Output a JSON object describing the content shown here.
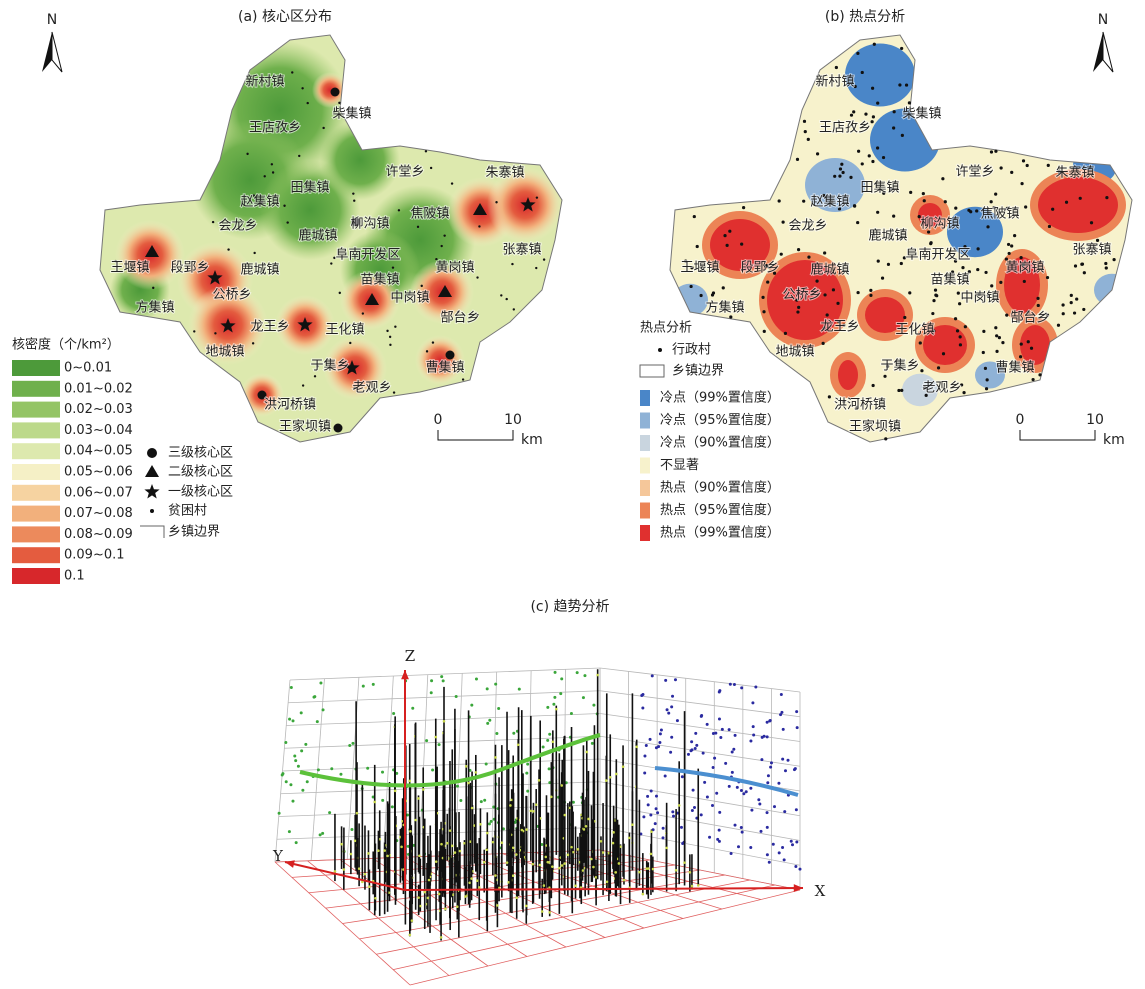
{
  "panel_a": {
    "title": "(a) 核心区分布",
    "north": "N",
    "towns": [
      "新村镇",
      "柴集镇",
      "王店孜乡",
      "田集镇",
      "许堂乡",
      "朱寨镇",
      "赵集镇",
      "柳沟镇",
      "焦陂镇",
      "会龙乡",
      "鹿城镇",
      "阜南开发区",
      "张寨镇",
      "王堰镇",
      "段郢乡",
      "鹿城镇",
      "苗集镇",
      "黄岗镇",
      "中岗镇",
      "公桥乡",
      "方集镇",
      "龙王乡",
      "王化镇",
      "郜台乡",
      "地城镇",
      "于集乡",
      "曹集镇",
      "老观乡",
      "洪河桥镇",
      "王家坝镇"
    ],
    "legend": {
      "title": "核密度（个/km²）",
      "classes": [
        {
          "label": "0~0.01",
          "color": "#4d9a3a"
        },
        {
          "label": "0.01~0.02",
          "color": "#6fb04c"
        },
        {
          "label": "0.02~0.03",
          "color": "#94c465"
        },
        {
          "label": "0.03~0.04",
          "color": "#bcd98a"
        },
        {
          "label": "0.04~0.05",
          "color": "#dde9ae"
        },
        {
          "label": "0.05~0.06",
          "color": "#f5f0c6"
        },
        {
          "label": "0.06~0.07",
          "color": "#f6d3a1"
        },
        {
          "label": "0.07~0.08",
          "color": "#f2b07c"
        },
        {
          "label": "0.08~0.09",
          "color": "#ec8a5c"
        },
        {
          "label": "0.09~0.1",
          "color": "#e45c3f"
        },
        {
          "label": "0.1",
          "color": "#d7272b"
        }
      ],
      "symbols": [
        "三级核心区",
        "二级核心区",
        "一级核心区",
        "贫困村",
        "乡镇边界"
      ]
    },
    "scale": {
      "ticks": [
        "0",
        "10"
      ],
      "unit": "km"
    }
  },
  "panel_b": {
    "title": "(b) 热点分析",
    "north": "N",
    "towns": [
      "新村镇",
      "柴集镇",
      "王店孜乡",
      "田集镇",
      "许堂乡",
      "朱寨镇",
      "赵集镇",
      "柳沟镇",
      "焦陂镇",
      "会龙乡",
      "鹿城镇",
      "阜南开发区",
      "张寨镇",
      "王堰镇",
      "段郢乡",
      "鹿城镇",
      "苗集镇",
      "黄岗镇",
      "中岗镇",
      "公桥乡",
      "方集镇",
      "龙王乡",
      "王化镇",
      "郜台乡",
      "地城镇",
      "于集乡",
      "曹集镇",
      "老观乡",
      "洪河桥镇",
      "王家坝镇"
    ],
    "legend": {
      "title": "热点分析",
      "symbols": [
        "行政村",
        "乡镇边界"
      ],
      "classes": [
        {
          "label": "冷点（99%置信度）",
          "color": "#4a86c8"
        },
        {
          "label": "冷点（95%置信度）",
          "color": "#8fb2d6"
        },
        {
          "label": "冷点（90%置信度）",
          "color": "#c9d5df"
        },
        {
          "label": "不显著",
          "color": "#f7f2cc"
        },
        {
          "label": "热点（90%置信度）",
          "color": "#f5c79a"
        },
        {
          "label": "热点（95%置信度）",
          "color": "#ec8456"
        },
        {
          "label": "热点（99%置信度）",
          "color": "#e0302f"
        }
      ]
    },
    "scale": {
      "ticks": [
        "0",
        "10"
      ],
      "unit": "km"
    }
  },
  "panel_c": {
    "title": "(c) 趋势分析",
    "axes": {
      "z": "Z",
      "y": "Y",
      "x": "X"
    }
  }
}
